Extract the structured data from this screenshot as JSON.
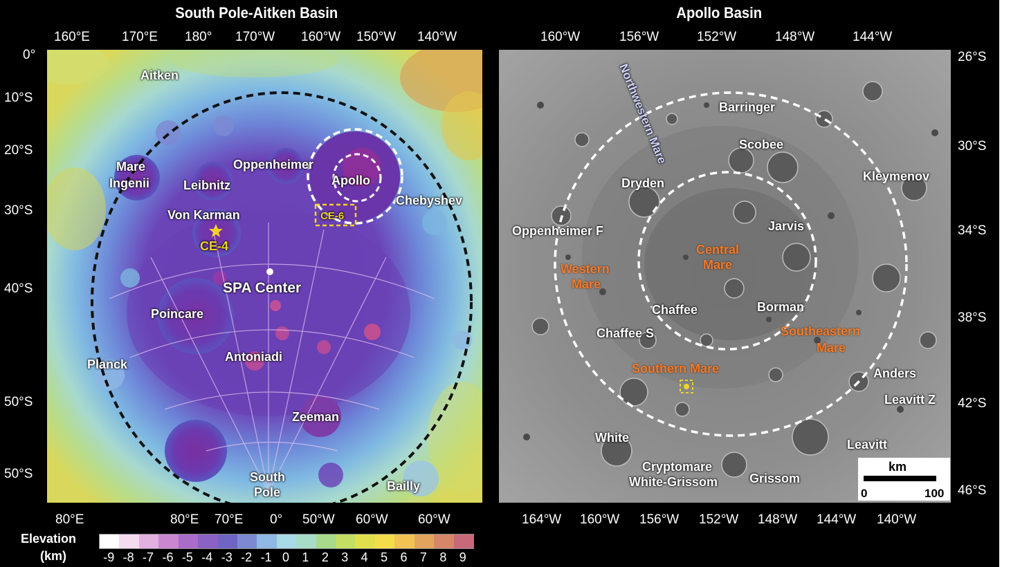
{
  "titles": {
    "left": "South Pole-Aitken Basin",
    "right": "Apollo Basin"
  },
  "left_panel": {
    "top_axis": [
      "160°E",
      "170°E",
      "180°",
      "170°W",
      "160°W",
      "150°W",
      "140°W"
    ],
    "bottom_axis": [
      "80°E",
      "80°E",
      "70°E",
      "0°",
      "50°W",
      "60°W",
      "60°W"
    ],
    "left_axis": [
      "0°",
      "10°S",
      "20°S",
      "30°S",
      "40°S",
      "50°S",
      "50°S"
    ],
    "features": {
      "aitken": "Aitken",
      "mare_ingenii_1": "Mare",
      "mare_ingenii_2": "Ingenii",
      "leibnitz": "Leibnitz",
      "oppenheimer": "Oppenheimer",
      "apollo": "Apollo",
      "chebyshev": "Chebyshev",
      "von_karman": "Von Karman",
      "ce6": "CE-6",
      "ce4": "CE-4",
      "spa_center": "SPA Center",
      "poincare": "Poincare",
      "planck": "Planck",
      "antoniadi": "Antoniadi",
      "zeeman": "Zeeman",
      "south_pole_1": "South",
      "south_pole_2": "Pole",
      "bailly": "Bailly"
    }
  },
  "right_panel": {
    "top_axis": [
      "160°W",
      "156°W",
      "152°W",
      "148°W",
      "144°W"
    ],
    "bottom_axis": [
      "164°W",
      "160°W",
      "156°W",
      "152°W",
      "148°W",
      "144°W",
      "140°W"
    ],
    "right_axis": [
      "26°S",
      "30°S",
      "34°S",
      "38°S",
      "42°S",
      "46°S"
    ],
    "features": {
      "northwestern_mare": "Northwestern Mare",
      "barringer": "Barringer",
      "scobee": "Scobee",
      "kleymenov": "Kleymenov",
      "dryden": "Dryden",
      "jarvis": "Jarvis",
      "oppenheimer_f": "Oppenheimer F",
      "central_mare_1": "Central",
      "central_mare_2": "Mare",
      "western_mare_1": "Western",
      "western_mare_2": "Mare",
      "chaffee": "Chaffee",
      "borman": "Borman",
      "chaffee_s": "Chaffee S",
      "southeastern_mare_1": "Southeastern",
      "southeastern_mare_2": "Mare",
      "southern_mare": "Southern Mare",
      "anders": "Anders",
      "leavitt_z": "Leavitt Z",
      "white": "White",
      "leavitt": "Leavitt",
      "cryptomare_1": "Cryptomare",
      "cryptomare_2": "White-Grissom",
      "grissom": "Grissom"
    },
    "scale_bar": {
      "unit": "km",
      "min": "0",
      "max": "100"
    }
  },
  "colorbar": {
    "label_1": "Elevation",
    "label_2": "(km)",
    "ticks": [
      "-9",
      "-8",
      "-7",
      "-6",
      "-5",
      "-4",
      "-3",
      "-2",
      "-1",
      "0",
      "1",
      "2",
      "3",
      "4",
      "5",
      "6",
      "7",
      "8",
      "9"
    ],
    "colors": [
      "#ffffff",
      "#f4dcef",
      "#e3b1e0",
      "#cb86d2",
      "#a96cc9",
      "#8a62c5",
      "#6f63c4",
      "#7d8ad2",
      "#8fb8e4",
      "#a7d9e6",
      "#a7dcc8",
      "#a9d98a",
      "#c4dd63",
      "#e1e04c",
      "#f3dd4b",
      "#f1c353",
      "#e3a55d",
      "#d7866a",
      "#c9687a"
    ]
  }
}
